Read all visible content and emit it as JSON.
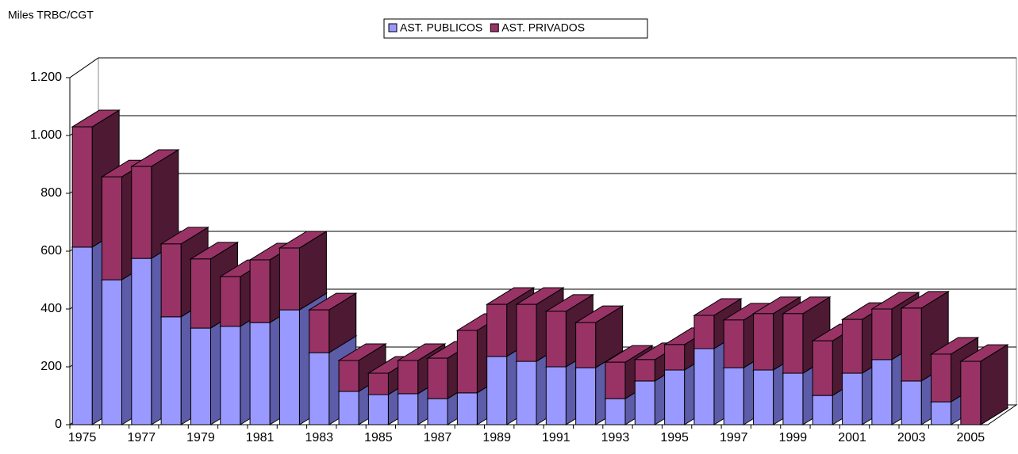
{
  "chart_data": {
    "type": "bar3d_stacked",
    "y_axis_title": "Miles TRBC/CGT",
    "categories": [
      "1975",
      null,
      "1977",
      null,
      "1979",
      null,
      "1981",
      null,
      "1983",
      null,
      "1985",
      null,
      "1987",
      null,
      "1989",
      null,
      "1991",
      null,
      "1993",
      null,
      "1995",
      null,
      "1997",
      null,
      "1999",
      null,
      "2001",
      null,
      "2003",
      null,
      "2005"
    ],
    "series": [
      {
        "name": "AST. PUBLICOS",
        "color": "#9999ff",
        "side_color": "#5c5ca8",
        "values": [
          614,
          501,
          575,
          373,
          334,
          340,
          353,
          397,
          249,
          115,
          104,
          107,
          90,
          110,
          236,
          219,
          200,
          197,
          90,
          151,
          189,
          263,
          197,
          189,
          178,
          101,
          178,
          225,
          151,
          79,
          0
        ]
      },
      {
        "name": "AST. PRIVADOS",
        "color": "#993366",
        "side_color": "#4d1933",
        "values": [
          416,
          356,
          318,
          252,
          239,
          172,
          217,
          214,
          148,
          107,
          74,
          115,
          140,
          216,
          180,
          197,
          192,
          156,
          126,
          74,
          88,
          115,
          165,
          195,
          206,
          189,
          186,
          175,
          252,
          165,
          219
        ]
      }
    ],
    "ylim": [
      0,
      1200
    ],
    "yticks": [
      0,
      200,
      400,
      600,
      800,
      {
        "value": 1000,
        "label": "1.000"
      },
      {
        "value": 1200,
        "label": "1.200"
      }
    ],
    "grid": true,
    "legend": "top"
  }
}
